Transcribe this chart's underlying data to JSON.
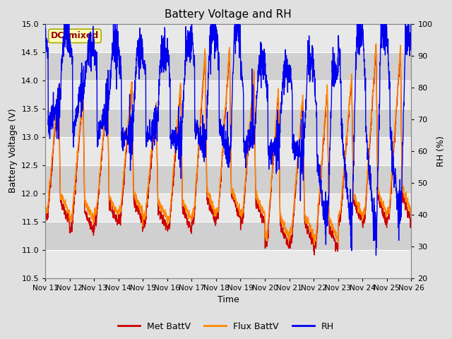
{
  "title": "Battery Voltage and RH",
  "xlabel": "Time",
  "ylabel_left": "Battery Voltage (V)",
  "ylabel_right": "RH (%)",
  "annotation": "DC_mixed",
  "ylim_left": [
    10.5,
    15.0
  ],
  "ylim_right": [
    20,
    100
  ],
  "yticks_left": [
    10.5,
    11.0,
    11.5,
    12.0,
    12.5,
    13.0,
    13.5,
    14.0,
    14.5,
    15.0
  ],
  "yticks_right": [
    20,
    30,
    40,
    50,
    60,
    70,
    80,
    90,
    100
  ],
  "xtick_labels": [
    "Nov 11",
    "Nov 12",
    "Nov 13",
    "Nov 14",
    "Nov 15",
    "Nov 16",
    "Nov 17",
    "Nov 18",
    "Nov 19",
    "Nov 20",
    "Nov 21",
    "Nov 22",
    "Nov 23",
    "Nov 24",
    "Nov 25",
    "Nov 26"
  ],
  "color_met": "#cc0000",
  "color_flux": "#ff8800",
  "color_rh": "#0000ee",
  "legend_labels": [
    "Met BattV",
    "Flux BattV",
    "RH"
  ],
  "bg_color": "#e0e0e0",
  "band_light": "#e8e8e8",
  "band_dark": "#d0d0d0",
  "title_fontsize": 11,
  "axis_fontsize": 9,
  "tick_fontsize": 8,
  "annotation_fontsize": 9,
  "annotation_color": "#990000",
  "annotation_bg": "#ffffbb",
  "annotation_edge": "#aaaa00",
  "linewidth": 1.0
}
